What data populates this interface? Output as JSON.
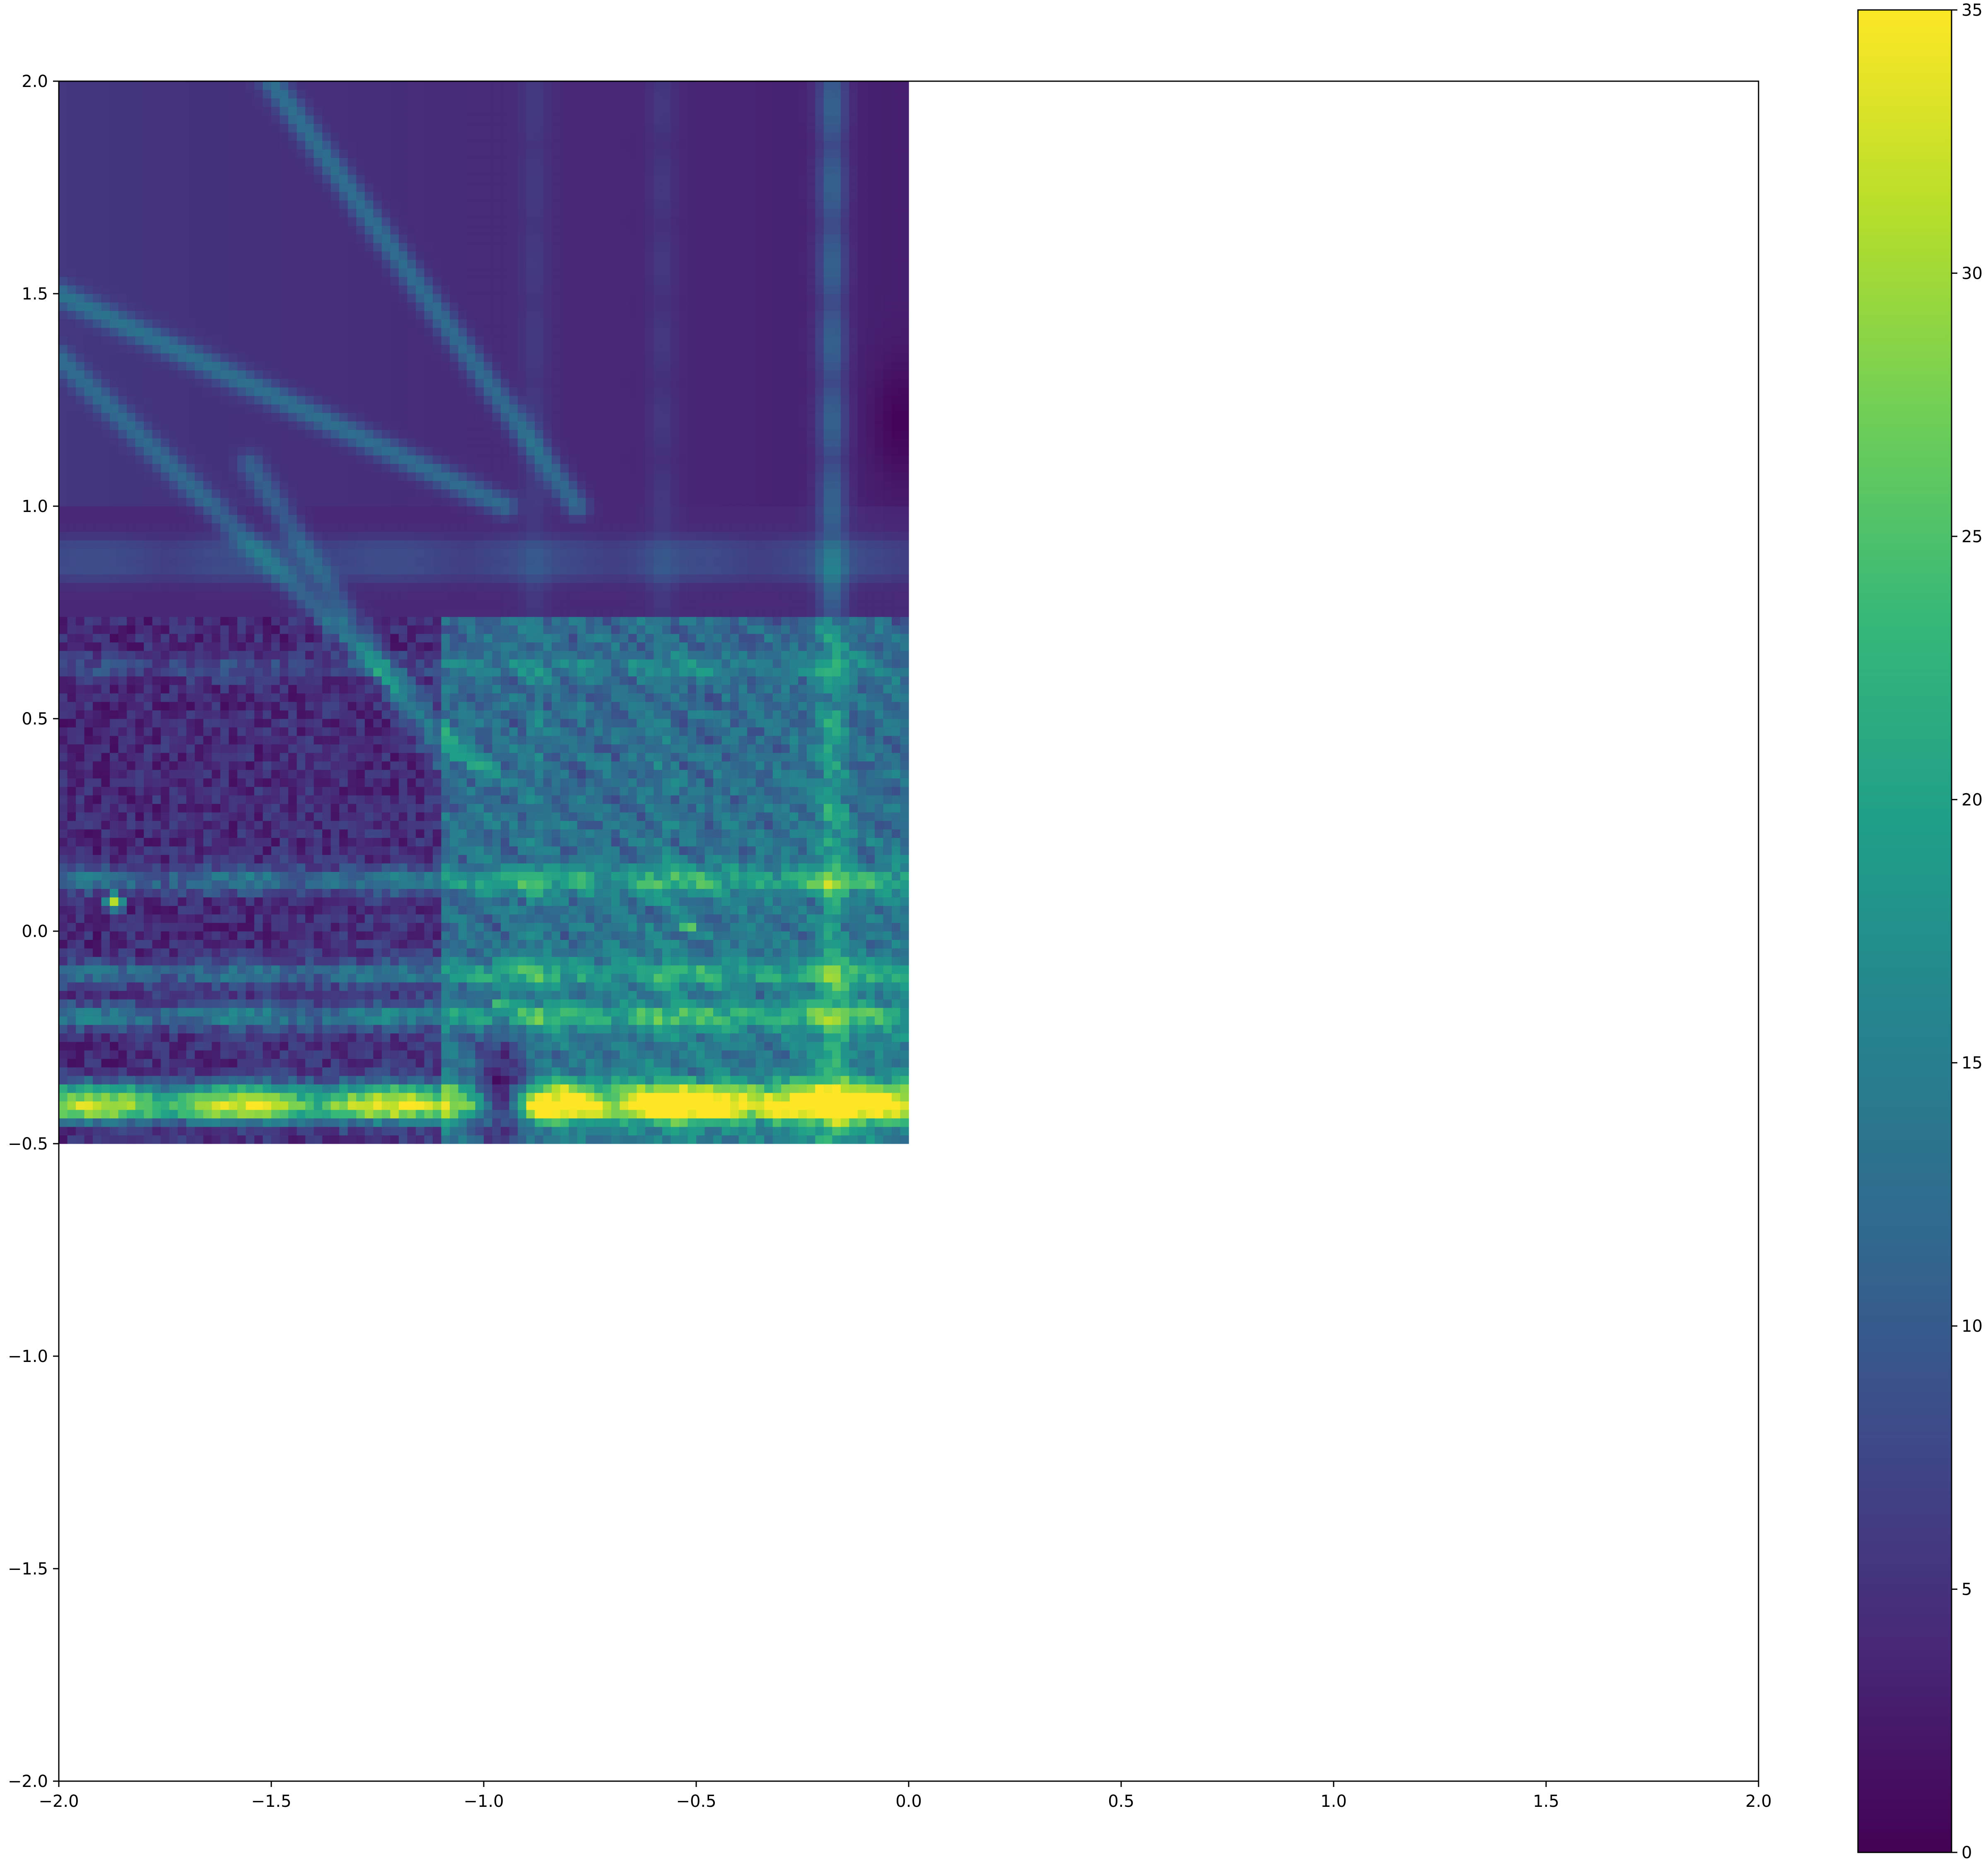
{
  "chart_data": {
    "type": "heatmap",
    "colormap": "viridis",
    "xlim": [
      -2.0,
      2.0
    ],
    "ylim": [
      -2.0,
      2.0
    ],
    "x_ticks": [
      -2.0,
      -1.5,
      -1.0,
      -0.5,
      0.0,
      0.5,
      1.0,
      1.5,
      2.0
    ],
    "y_ticks": [
      -2.0,
      -1.5,
      -1.0,
      -0.5,
      0.0,
      0.5,
      1.0,
      1.5,
      2.0
    ],
    "x_tick_labels": [
      "−2.0",
      "−1.5",
      "−1.0",
      "−0.5",
      "0.0",
      "0.5",
      "1.0",
      "1.5",
      "2.0"
    ],
    "y_tick_labels": [
      "−2.0",
      "−1.5",
      "−1.0",
      "−0.5",
      "0.0",
      "0.5",
      "1.0",
      "1.5",
      "2.0"
    ],
    "data_extent": {
      "x": [
        -2.0,
        0.0
      ],
      "y": [
        -0.5,
        2.0
      ]
    },
    "colorbar": {
      "range": [
        0,
        35
      ],
      "ticks": [
        0,
        5,
        10,
        15,
        20,
        25,
        30,
        35
      ],
      "tick_labels": [
        "0",
        "5",
        "10",
        "15",
        "20",
        "25",
        "30",
        "35"
      ]
    },
    "grid": false,
    "title": "",
    "xlabel": "",
    "ylabel": "",
    "colors": {
      "viridis_stops": [
        "#440154",
        "#482878",
        "#3e4989",
        "#31688e",
        "#26828e",
        "#1f9e89",
        "#35b779",
        "#6ece58",
        "#b5de2b",
        "#fde725"
      ],
      "axis": "#000000",
      "background": "#ffffff"
    },
    "features": [
      {
        "kind": "ray",
        "from": [
          -1.5,
          2.0
        ],
        "to": [
          -0.78,
          1.0
        ],
        "value": 12
      },
      {
        "kind": "ray",
        "from": [
          -2.0,
          1.5
        ],
        "to": [
          -0.95,
          1.0
        ],
        "value": 12
      },
      {
        "kind": "ray",
        "from": [
          -2.0,
          1.35
        ],
        "to": [
          -1.0,
          0.38
        ],
        "value": 11
      },
      {
        "kind": "ray",
        "from": [
          -1.55,
          1.1
        ],
        "to": [
          -1.1,
          0.4
        ],
        "value": 10
      },
      {
        "kind": "band",
        "y": 0.12,
        "value": 15
      },
      {
        "kind": "band",
        "y": -0.1,
        "value": 14
      },
      {
        "kind": "band",
        "y": -0.2,
        "value": 16
      },
      {
        "kind": "band",
        "y": -0.38,
        "value": 22
      },
      {
        "kind": "band",
        "y": -0.42,
        "value": 30
      },
      {
        "kind": "band",
        "y": 0.9,
        "value": 9
      },
      {
        "kind": "band",
        "y": 0.85,
        "value": 9
      },
      {
        "kind": "band",
        "y": 0.62,
        "value": 9
      },
      {
        "kind": "vertical",
        "x": -0.18,
        "value": 13
      },
      {
        "kind": "vertical",
        "x": -0.88,
        "value": 7
      },
      {
        "kind": "vertical",
        "x": -0.58,
        "value": 7
      },
      {
        "kind": "dark",
        "center": [
          -0.96,
          -0.38
        ],
        "value": 0
      },
      {
        "kind": "dark",
        "center": [
          -0.02,
          1.2
        ],
        "value": 0
      },
      {
        "kind": "hotspot",
        "at": [
          -1.5,
          -0.41
        ],
        "value": 34
      },
      {
        "kind": "hotspot",
        "at": [
          -1.87,
          0.07
        ],
        "value": 30
      },
      {
        "kind": "hotspot",
        "at": [
          -0.52,
          0.01
        ],
        "value": 30
      },
      {
        "kind": "hotspot",
        "at": [
          -0.96,
          -0.17
        ],
        "value": 29
      },
      {
        "kind": "hotspot",
        "at": [
          -1.83,
          -0.41
        ],
        "value": 28
      }
    ]
  }
}
